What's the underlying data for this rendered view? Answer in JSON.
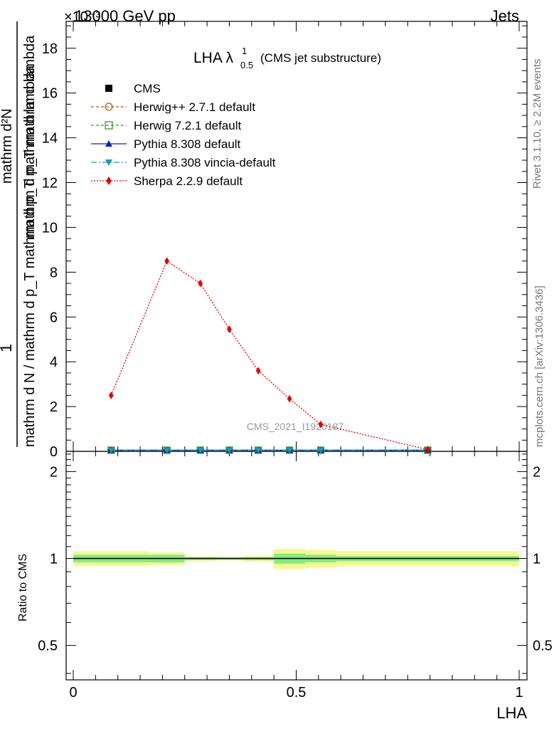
{
  "header": {
    "energy_label": "13000 GeV pp",
    "process_label": "Jets",
    "exponent_label": "×10⁻³"
  },
  "side_text": {
    "rivet": "Rivet 3.1.10, ≥ 2.2M events",
    "mcplots": "mcplots.cern.ch [arXiv:1306.3436]"
  },
  "watermark": "CMS_2021_I1920187",
  "plot_title": {
    "main": "LHA λ",
    "sup": "1",
    "sub": "0.5",
    "paren": "(CMS jet substructure)"
  },
  "ylabel_main": {
    "top": "mathrm d²N",
    "top_bottom": "mathrm d p_T mathrm d lambda",
    "bottom": "mathrm d N / mathrm d p_T mathrm d p_T mathrm d lambda",
    "one": "1"
  },
  "ratio_ylabel": "Ratio to CMS",
  "xlabel": "LHA",
  "legend": [
    {
      "label": "CMS",
      "color": "#000000",
      "marker": "square-filled",
      "dash": "none"
    },
    {
      "label": "Herwig++ 2.7.1 default",
      "color": "#b06010",
      "marker": "circle-open",
      "dash": "4,3"
    },
    {
      "label": "Herwig 7.2.1 default",
      "color": "#3a9a1a",
      "marker": "square-open",
      "dash": "4,3"
    },
    {
      "label": "Pythia 8.308 default",
      "color": "#1020c0",
      "marker": "triangle-up",
      "dash": "none"
    },
    {
      "label": "Pythia 8.308 vincia-default",
      "color": "#1e9ab0",
      "marker": "triangle-down",
      "dash": "8,3,2,3"
    },
    {
      "label": "Sherpa 2.2.9 default",
      "color": "#e00000",
      "marker": "diamond",
      "dash": "2,2"
    }
  ],
  "chart_data": {
    "type": "line",
    "x": [
      0.085,
      0.21,
      0.285,
      0.35,
      0.415,
      0.485,
      0.555,
      0.795
    ],
    "series": [
      {
        "name": "CMS",
        "values": [
          0.05,
          0.05,
          0.05,
          0.05,
          0.05,
          0.05,
          0.05,
          0.05
        ]
      },
      {
        "name": "Herwig++ 2.7.1 default",
        "values": [
          0.05,
          0.05,
          0.05,
          0.05,
          0.05,
          0.05,
          0.05,
          0.05
        ]
      },
      {
        "name": "Herwig 7.2.1 default",
        "values": [
          0.05,
          0.05,
          0.05,
          0.05,
          0.05,
          0.05,
          0.05,
          0.05
        ]
      },
      {
        "name": "Pythia 8.308 default",
        "values": [
          0.05,
          0.05,
          0.05,
          0.05,
          0.05,
          0.05,
          0.05,
          0.05
        ]
      },
      {
        "name": "Pythia 8.308 vincia-default",
        "values": [
          0.05,
          0.05,
          0.05,
          0.05,
          0.05,
          0.05,
          0.05,
          0.05
        ]
      },
      {
        "name": "Sherpa 2.2.9 default",
        "values": [
          2.5,
          8.5,
          7.5,
          5.45,
          3.6,
          2.35,
          1.2,
          0.08
        ]
      }
    ],
    "ylim": [
      0,
      19.2
    ],
    "xlim": [
      0,
      1
    ],
    "yticks": [
      0,
      2,
      4,
      6,
      8,
      10,
      12,
      14,
      16,
      18
    ],
    "xticks": [
      0,
      0.5,
      1
    ],
    "xtick_labels": [
      "0",
      "0.5",
      "1"
    ],
    "ratio": {
      "ylim": [
        0.38,
        2.35
      ],
      "log": true,
      "yticks": [
        0.5,
        1,
        2
      ],
      "ytick_labels": [
        "0.5",
        "1",
        "2"
      ],
      "bins": [
        {
          "lo": 0.0,
          "hi": 0.17,
          "inner": 0.03,
          "outer": 0.06
        },
        {
          "lo": 0.17,
          "hi": 0.25,
          "inner": 0.03,
          "outer": 0.05
        },
        {
          "lo": 0.25,
          "hi": 0.32,
          "inner": 0.012,
          "outer": 0.018
        },
        {
          "lo": 0.32,
          "hi": 0.38,
          "inner": 0.01,
          "outer": 0.015
        },
        {
          "lo": 0.38,
          "hi": 0.45,
          "inner": 0.012,
          "outer": 0.02
        },
        {
          "lo": 0.45,
          "hi": 0.52,
          "inner": 0.04,
          "outer": 0.08
        },
        {
          "lo": 0.52,
          "hi": 0.59,
          "inner": 0.03,
          "outer": 0.07
        },
        {
          "lo": 0.59,
          "hi": 1.0,
          "inner": 0.02,
          "outer": 0.06
        }
      ],
      "inner_color": "#80ee80",
      "outer_color": "#f8f890"
    }
  }
}
